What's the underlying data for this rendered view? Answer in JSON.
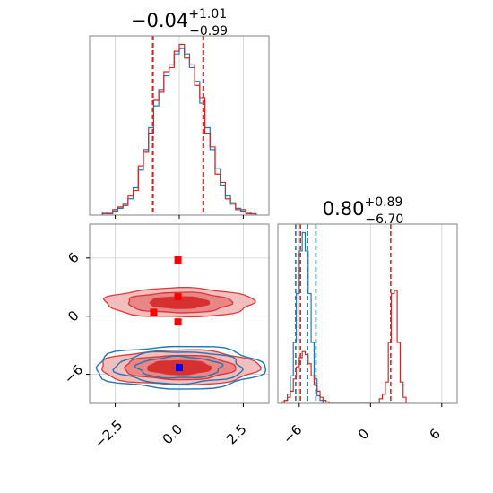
{
  "chart_data": [
    {
      "type": "histogram",
      "panel": "top-left",
      "title": {
        "value": "−0.04",
        "upper": "+1.01",
        "lower": "−0.99"
      },
      "x": {
        "lim": [
          -3.5,
          3.5
        ],
        "ticks": [
          -2.5,
          0.0,
          2.5
        ]
      },
      "grid": true,
      "quantile_lines": [
        {
          "series": "blue",
          "values": [
            -1.02,
            0.95
          ]
        },
        {
          "series": "red",
          "values": [
            -1.04,
            0.93
          ]
        }
      ],
      "bin_edges": [
        -3.0,
        -2.8,
        -2.6,
        -2.4,
        -2.2,
        -2.0,
        -1.8,
        -1.6,
        -1.4,
        -1.2,
        -1.0,
        -0.8,
        -0.6,
        -0.4,
        -0.2,
        0.0,
        0.2,
        0.4,
        0.6,
        0.8,
        1.0,
        1.2,
        1.4,
        1.6,
        1.8,
        2.0,
        2.2,
        2.4,
        2.6,
        2.8,
        3.0
      ],
      "series": [
        {
          "name": "blue",
          "color": "#1f77b4",
          "counts": [
            1,
            2,
            3,
            5,
            8,
            12,
            20,
            33,
            48,
            64,
            80,
            92,
            102,
            110,
            118,
            122,
            118,
            108,
            98,
            82,
            64,
            48,
            34,
            22,
            14,
            8,
            5,
            3,
            2,
            1
          ]
        },
        {
          "name": "red",
          "color": "#d62728",
          "counts": [
            2,
            1,
            4,
            6,
            7,
            14,
            18,
            36,
            46,
            60,
            84,
            90,
            105,
            108,
            120,
            125,
            115,
            110,
            95,
            86,
            60,
            50,
            30,
            24,
            12,
            9,
            4,
            4,
            1,
            1
          ]
        }
      ]
    },
    {
      "type": "contour",
      "panel": "bottom-left",
      "x": {
        "lim": [
          -3.5,
          3.5
        ],
        "ticks": [
          -2.5,
          0.0,
          2.5
        ],
        "tick_labels": [
          "−2.5",
          "0.0",
          "2.5"
        ]
      },
      "y": {
        "lim": [
          -9.0,
          9.5
        ],
        "ticks": [
          6,
          0,
          -6
        ],
        "tick_labels": [
          "6",
          "0",
          "−6"
        ]
      },
      "grid": true,
      "modes": [
        {
          "series": "red",
          "cx": 0.0,
          "cy": 1.4,
          "sx": 1.45,
          "sy": 0.75
        },
        {
          "series": "red",
          "cx": 0.0,
          "cy": -5.3,
          "sx": 1.55,
          "sy": 0.9
        },
        {
          "series": "blue",
          "cx": 0.0,
          "cy": -5.3,
          "sx": 1.65,
          "sy": 1.1
        }
      ],
      "markers": [
        {
          "series": "red",
          "x": -0.05,
          "y": 5.8
        },
        {
          "series": "red",
          "x": -1.0,
          "y": 0.4
        },
        {
          "series": "red",
          "x": -0.05,
          "y": -0.6
        },
        {
          "series": "red",
          "x": -0.05,
          "y": 2.0
        },
        {
          "series": "blue",
          "x": 0.0,
          "y": -5.3
        }
      ]
    },
    {
      "type": "histogram",
      "panel": "bottom-right",
      "title": {
        "value": "0.80",
        "upper": "+0.89",
        "lower": "−6.70"
      },
      "x": {
        "lim": [
          -7.8,
          7.3
        ],
        "ticks": [
          -6,
          0,
          6
        ],
        "tick_labels": [
          "−6",
          "0",
          "6"
        ]
      },
      "grid": true,
      "quantile_lines": [
        {
          "series": "blue",
          "values": [
            -6.3,
            -5.3,
            -4.6
          ]
        },
        {
          "series": "red",
          "values": [
            -5.9,
            1.7
          ]
        }
      ],
      "bin_edges": [
        -7.5,
        -7.25,
        -7.0,
        -6.75,
        -6.5,
        -6.25,
        -6.0,
        -5.75,
        -5.5,
        -5.25,
        -5.0,
        -4.75,
        -4.5,
        -4.25,
        -4.0,
        -3.75,
        -3.5,
        -3.25,
        -3.0,
        -2.75,
        -2.5,
        -2.25,
        -2.0,
        -1.75,
        -1.5,
        -1.25,
        -1.0,
        -0.75,
        -0.5,
        -0.25,
        0.0,
        0.25,
        0.5,
        0.75,
        1.0,
        1.25,
        1.5,
        1.75,
        2.0,
        2.25,
        2.5,
        2.75,
        3.0
      ],
      "series": [
        {
          "name": "blue",
          "color": "#1f77b4",
          "counts": [
            0,
            2,
            6,
            18,
            40,
            72,
            100,
            112,
            100,
            72,
            40,
            16,
            5,
            2,
            0,
            0,
            0,
            0,
            0,
            0,
            0,
            0,
            0,
            0,
            0,
            0,
            0,
            0,
            0,
            0,
            0,
            0,
            0,
            0,
            0,
            0,
            0,
            0,
            0,
            0,
            0,
            0
          ]
        },
        {
          "name": "red",
          "color": "#d62728",
          "counts": [
            1,
            2,
            4,
            8,
            16,
            24,
            30,
            34,
            32,
            26,
            18,
            12,
            8,
            4,
            2,
            1,
            0,
            0,
            0,
            0,
            0,
            0,
            0,
            0,
            0,
            0,
            0,
            0,
            0,
            0,
            0,
            0,
            0,
            3,
            6,
            14,
            40,
            72,
            74,
            40,
            14,
            4
          ]
        }
      ]
    }
  ]
}
